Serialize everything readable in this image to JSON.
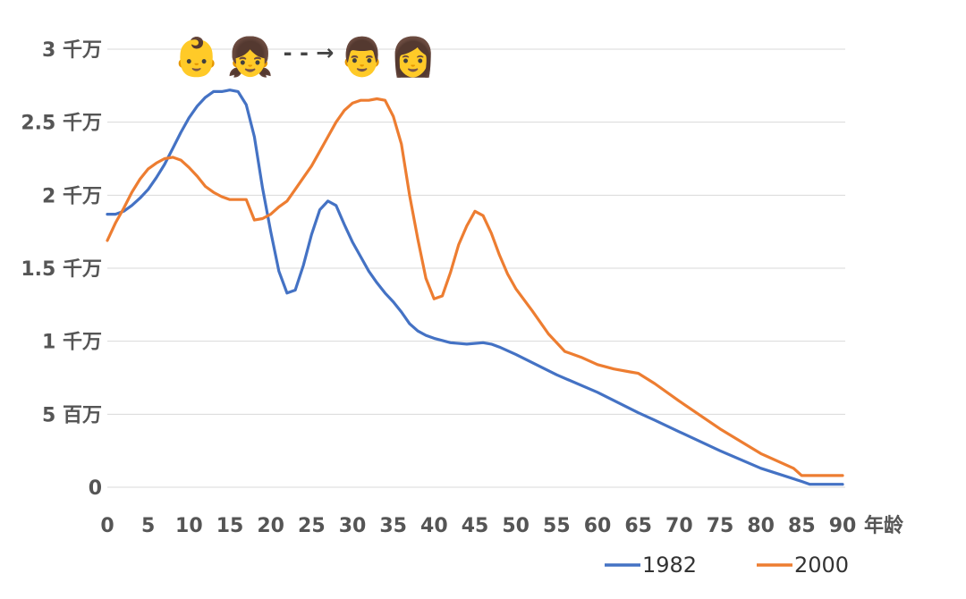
{
  "chart_data": {
    "type": "line",
    "title": "",
    "xlabel": "年龄",
    "ylabel": "",
    "xlim": [
      0,
      90
    ],
    "ylim": [
      0,
      30000000
    ],
    "x_ticks": [
      0,
      5,
      10,
      15,
      20,
      25,
      30,
      35,
      40,
      45,
      50,
      55,
      60,
      65,
      70,
      75,
      80,
      85,
      90
    ],
    "y_ticks": [
      {
        "value": 0,
        "label": "0"
      },
      {
        "value": 5000000,
        "label": "5 百万"
      },
      {
        "value": 10000000,
        "label": "1 千万"
      },
      {
        "value": 15000000,
        "label": "1.5 千万"
      },
      {
        "value": 20000000,
        "label": "2 千万"
      },
      {
        "value": 25000000,
        "label": "2.5 千万"
      },
      {
        "value": 30000000,
        "label": "3 千万"
      }
    ],
    "grid": true,
    "legend_position": "bottom-right",
    "annotation": {
      "emojis_left": [
        "👶",
        "👧"
      ],
      "emojis_right": [
        "👨",
        "👩"
      ],
      "arrow": "- - →"
    },
    "series": [
      {
        "name": "1982",
        "color": "#4472c4",
        "x": [
          0,
          1,
          2,
          3,
          4,
          5,
          6,
          7,
          8,
          9,
          10,
          11,
          12,
          13,
          14,
          15,
          16,
          17,
          18,
          19,
          20,
          21,
          22,
          23,
          24,
          25,
          26,
          27,
          28,
          29,
          30,
          31,
          32,
          33,
          34,
          35,
          36,
          37,
          38,
          39,
          40,
          42,
          44,
          46,
          47,
          48,
          50,
          55,
          60,
          65,
          67,
          70,
          75,
          80,
          85,
          86,
          90
        ],
        "values": [
          18.7,
          18.7,
          18.9,
          19.3,
          19.8,
          20.4,
          21.2,
          22.1,
          23.2,
          24.3,
          25.3,
          26.1,
          26.7,
          27.1,
          27.1,
          27.2,
          27.1,
          26.2,
          24,
          20.5,
          17.5,
          14.8,
          13.3,
          13.5,
          15.2,
          17.3,
          19,
          19.6,
          19.3,
          18,
          16.8,
          15.8,
          14.8,
          14,
          13.3,
          12.7,
          12,
          11.2,
          10.7,
          10.4,
          10.2,
          9.9,
          9.8,
          9.9,
          9.8,
          9.6,
          9.1,
          7.7,
          6.5,
          5.1,
          4.6,
          3.8,
          2.5,
          1.3,
          0.4,
          0.2,
          0.2
        ]
      },
      {
        "name": "2000",
        "color": "#ed7d31",
        "x": [
          0,
          1,
          2,
          3,
          4,
          5,
          6,
          7,
          8,
          9,
          10,
          11,
          12,
          13,
          14,
          15,
          16,
          17,
          18,
          19,
          20,
          21,
          22,
          23,
          24,
          25,
          26,
          27,
          28,
          29,
          30,
          31,
          32,
          33,
          34,
          35,
          36,
          37,
          38,
          39,
          40,
          41,
          42,
          43,
          44,
          45,
          46,
          47,
          48,
          49,
          50,
          52,
          54,
          56,
          58,
          60,
          62,
          64,
          65,
          67,
          70,
          75,
          80,
          84,
          85,
          90
        ],
        "values": [
          16.9,
          18.1,
          19.1,
          20.2,
          21.1,
          21.8,
          22.2,
          22.5,
          22.6,
          22.4,
          21.9,
          21.3,
          20.6,
          20.2,
          19.9,
          19.7,
          19.7,
          19.7,
          18.3,
          18.4,
          18.7,
          19.2,
          19.6,
          20.4,
          21.2,
          22,
          23,
          24,
          25,
          25.8,
          26.3,
          26.5,
          26.5,
          26.6,
          26.5,
          25.4,
          23.5,
          20,
          17,
          14.3,
          12.9,
          13.1,
          14.7,
          16.6,
          17.9,
          18.9,
          18.6,
          17.4,
          15.9,
          14.6,
          13.6,
          12.1,
          10.5,
          9.3,
          8.9,
          8.4,
          8.1,
          7.9,
          7.8,
          7.1,
          5.9,
          4,
          2.3,
          1.3,
          0.8,
          0.8
        ]
      }
    ]
  }
}
